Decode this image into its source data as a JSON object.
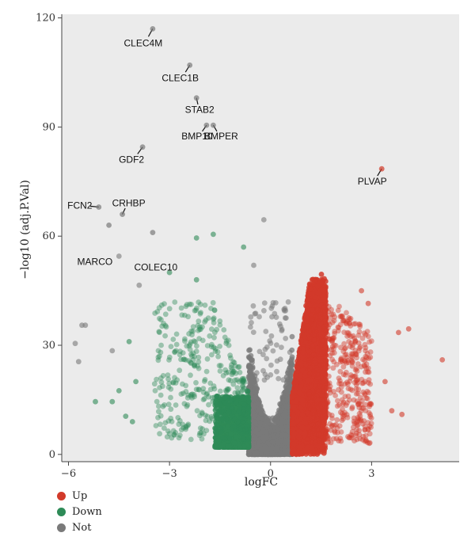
{
  "chart_data": {
    "type": "scatter",
    "title": "",
    "xlabel": "logFC",
    "ylabel": "−log10 (adj.P.Val)",
    "xlim": [
      -6.2,
      5.6
    ],
    "ylim": [
      -2,
      121
    ],
    "xticks": [
      -6,
      -3,
      0,
      3
    ],
    "yticks": [
      0,
      30,
      60,
      90,
      120
    ],
    "grid": false,
    "background": "#ebebeb",
    "legend": {
      "position": "bottom-left",
      "entries": [
        {
          "label": "Up",
          "color": "#d23a2a"
        },
        {
          "label": "Down",
          "color": "#2e8b57"
        },
        {
          "label": "Not",
          "color": "#7a7a7a"
        }
      ]
    },
    "labeled_points": [
      {
        "gene": "CLEC4M",
        "x": -3.5,
        "y": 117,
        "group": "Not"
      },
      {
        "gene": "CLEC1B",
        "x": -2.4,
        "y": 107,
        "group": "Not"
      },
      {
        "gene": "STAB2",
        "x": -2.2,
        "y": 98,
        "group": "Not"
      },
      {
        "gene": "BMP10",
        "x": -1.9,
        "y": 90.5,
        "group": "Not"
      },
      {
        "gene": "BMPER",
        "x": -1.7,
        "y": 90.5,
        "group": "Not"
      },
      {
        "gene": "GDF2",
        "x": -3.8,
        "y": 84.5,
        "group": "Not"
      },
      {
        "gene": "PLVAP",
        "x": 3.3,
        "y": 78.5,
        "group": "Up"
      },
      {
        "gene": "FCN2",
        "x": -5.1,
        "y": 68,
        "group": "Not"
      },
      {
        "gene": "CRHBP",
        "x": -4.4,
        "y": 66,
        "group": "Not"
      },
      {
        "gene": "MARCO",
        "x": -4.8,
        "y": 63,
        "group": "Not"
      },
      {
        "gene": "COLEC10",
        "x": -3.5,
        "y": 61,
        "group": "Not"
      }
    ],
    "outlier_points": [
      {
        "x": -0.2,
        "y": 64.5,
        "group": "Not"
      },
      {
        "x": -1.7,
        "y": 60.5,
        "group": "Down"
      },
      {
        "x": -2.2,
        "y": 59.5,
        "group": "Down"
      },
      {
        "x": -0.8,
        "y": 57,
        "group": "Down"
      },
      {
        "x": -4.5,
        "y": 54.5,
        "group": "Not"
      },
      {
        "x": -3.0,
        "y": 50,
        "group": "Down"
      },
      {
        "x": -0.5,
        "y": 52,
        "group": "Not"
      },
      {
        "x": -2.2,
        "y": 48,
        "group": "Down"
      },
      {
        "x": -3.9,
        "y": 46.5,
        "group": "Not"
      },
      {
        "x": -5.5,
        "y": 35.5,
        "group": "Not"
      },
      {
        "x": -5.6,
        "y": 35.5,
        "group": "Not"
      },
      {
        "x": -5.8,
        "y": 30.5,
        "group": "Not"
      },
      {
        "x": -5.7,
        "y": 25.5,
        "group": "Not"
      },
      {
        "x": -4.7,
        "y": 28.5,
        "group": "Not"
      },
      {
        "x": -4.2,
        "y": 31,
        "group": "Down"
      },
      {
        "x": -5.2,
        "y": 14.5,
        "group": "Down"
      },
      {
        "x": -4.7,
        "y": 14.5,
        "group": "Down"
      },
      {
        "x": -4.5,
        "y": 17.5,
        "group": "Down"
      },
      {
        "x": -4.0,
        "y": 20,
        "group": "Down"
      },
      {
        "x": -4.3,
        "y": 10.5,
        "group": "Down"
      },
      {
        "x": -4.1,
        "y": 9,
        "group": "Down"
      },
      {
        "x": 5.1,
        "y": 26,
        "group": "Up"
      },
      {
        "x": 4.1,
        "y": 34.5,
        "group": "Up"
      },
      {
        "x": 3.8,
        "y": 33.5,
        "group": "Up"
      },
      {
        "x": 3.6,
        "y": 12,
        "group": "Up"
      },
      {
        "x": 3.9,
        "y": 11,
        "group": "Up"
      },
      {
        "x": 3.4,
        "y": 20,
        "group": "Up"
      },
      {
        "x": 2.9,
        "y": 41.5,
        "group": "Up"
      },
      {
        "x": 2.7,
        "y": 45,
        "group": "Up"
      }
    ],
    "groups": {
      "Up": {
        "x_range": [
          0.65,
          3.1
        ],
        "y_max_at_fc1": 50,
        "shape": "dense-cloud"
      },
      "Down": {
        "x_range": [
          -4.4,
          -0.65
        ],
        "y_max_at_fc1": 45,
        "shape": "scattered-cloud"
      },
      "Not": {
        "x_range": [
          -0.65,
          0.65
        ],
        "y_max_at_fc1": 40,
        "shape": "dense-core"
      }
    }
  }
}
